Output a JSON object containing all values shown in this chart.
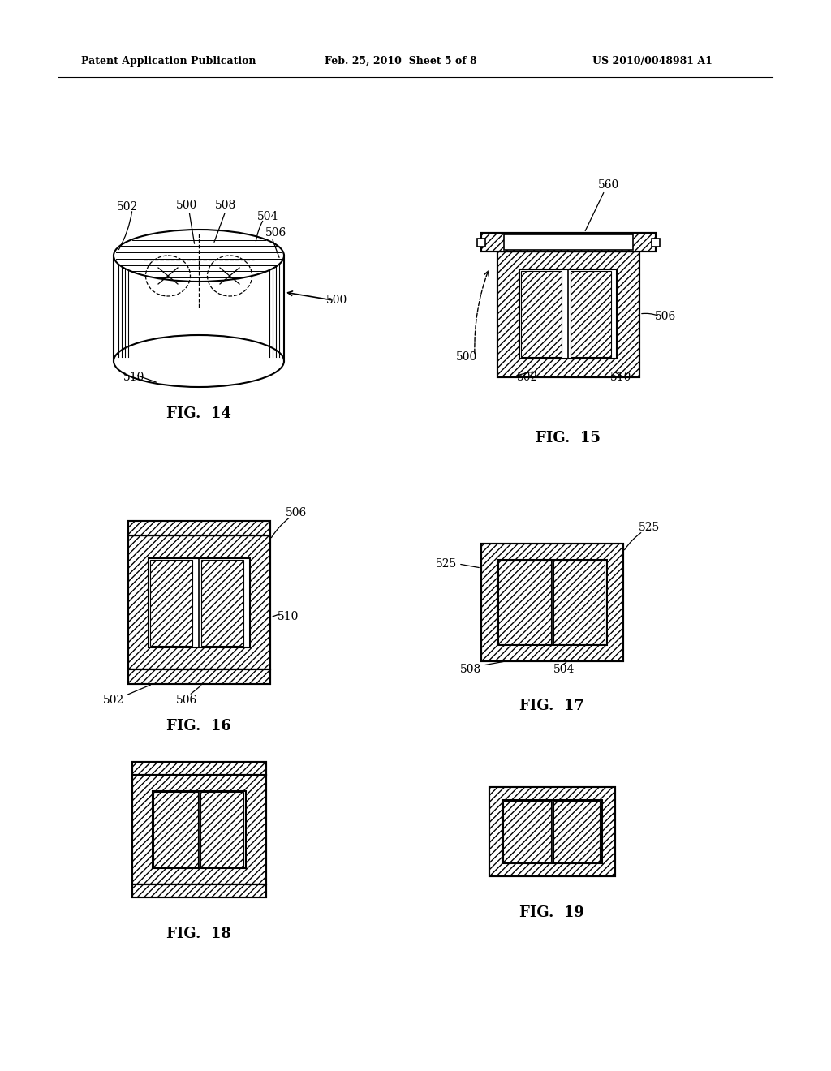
{
  "bg_color": "#ffffff",
  "header_left": "Patent Application Publication",
  "header_mid": "Feb. 25, 2010  Sheet 5 of 8",
  "header_right": "US 2010/0048981 A1",
  "fig14_label": "FIG.  14",
  "fig15_label": "FIG.  15",
  "fig16_label": "FIG.  16",
  "fig17_label": "FIG.  17",
  "fig18_label": "FIG.  18",
  "fig19_label": "FIG.  19",
  "line_color": "#000000",
  "hatch_color": "#000000"
}
